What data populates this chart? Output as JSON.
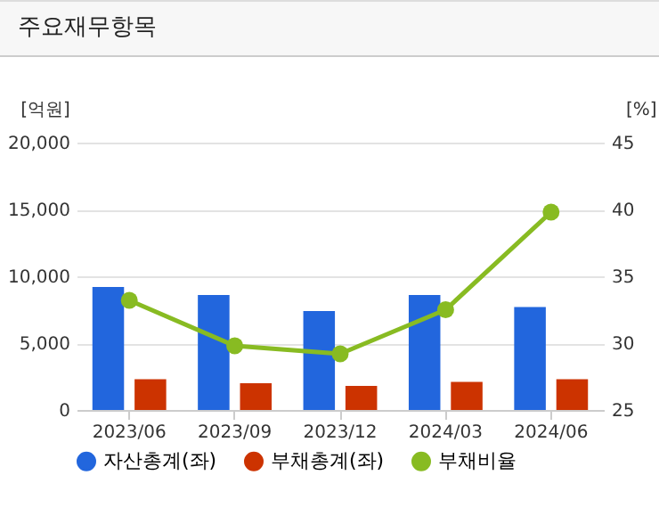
{
  "chart_data": {
    "type": "bar",
    "title": "주요재무항목",
    "ylabel": "[억원]",
    "y2label": "[%]",
    "categories": [
      "2023/06",
      "2023/09",
      "2023/12",
      "2024/03",
      "2024/06"
    ],
    "series": [
      {
        "name": "자산총계(좌)",
        "color": "#2266dd",
        "values": [
          9200,
          8600,
          7400,
          8600,
          7700
        ]
      },
      {
        "name": "부채총계(좌)",
        "color": "#cc3300",
        "values": [
          2300,
          2000,
          1800,
          2100,
          2300
        ]
      },
      {
        "name": "부채비율",
        "type": "line",
        "axis": "y2",
        "color": "#88bb22",
        "values": [
          33.2,
          29.8,
          29.2,
          32.5,
          39.8
        ]
      }
    ],
    "ylim": [
      0,
      20000
    ],
    "yticks": [
      0,
      {
        "value": 5000,
        "label": "5,000"
      },
      {
        "value": 10000,
        "label": "10,000"
      },
      {
        "value": 15000,
        "label": "15,000"
      },
      {
        "value": 20000,
        "label": "20,000"
      }
    ],
    "y2lim": [
      25,
      45
    ],
    "y2ticks": [
      25,
      30,
      35,
      40,
      45
    ],
    "grid": "y",
    "legend": "bottom",
    "marker": "circle"
  }
}
